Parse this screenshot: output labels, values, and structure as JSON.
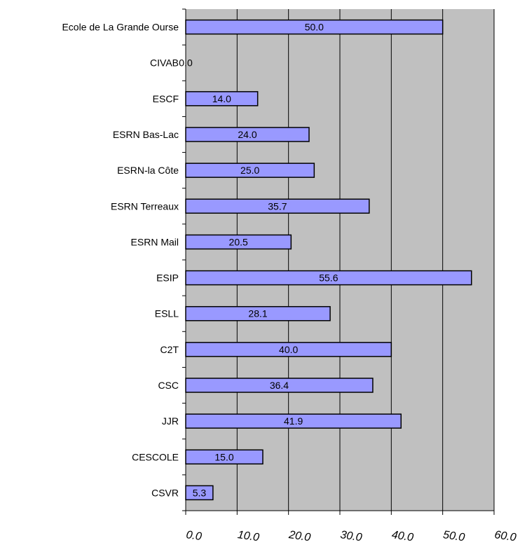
{
  "chart_data": {
    "type": "bar",
    "orientation": "horizontal",
    "categories": [
      "Ecole de La Grande Ourse",
      "CIVAB",
      "ESCF",
      "ESRN Bas-Lac",
      "ESRN-la Côte",
      "ESRN Terreaux",
      "ESRN Mail",
      "ESIP",
      "ESLL",
      "C2T",
      "CSC",
      "JJR",
      "CESCOLE",
      "CSVR"
    ],
    "values": [
      50.0,
      0.0,
      14.0,
      24.0,
      25.0,
      35.7,
      20.5,
      55.6,
      28.1,
      40.0,
      36.4,
      41.9,
      15.0,
      5.3
    ],
    "data_labels": [
      "50.0",
      "0.0",
      "14.0",
      "24.0",
      "25.0",
      "35.7",
      "20.5",
      "55.6",
      "28.1",
      "40.0",
      "36.4",
      "41.9",
      "15.0",
      "5.3"
    ],
    "x_ticks": [
      0,
      10,
      20,
      30,
      40,
      50,
      60
    ],
    "x_tick_labels": [
      "0.0",
      "10.0",
      "20.0",
      "30.0",
      "40.0",
      "50.0",
      "60.0"
    ],
    "xlim": [
      0,
      60
    ],
    "title": "",
    "xlabel": "",
    "ylabel": "",
    "grid": "vertical",
    "legend": "none",
    "colors": {
      "bar_fill": "#9999ff",
      "bar_stroke": "#000000",
      "plot_background": "#c0c0c0",
      "grid": "#000000"
    }
  }
}
